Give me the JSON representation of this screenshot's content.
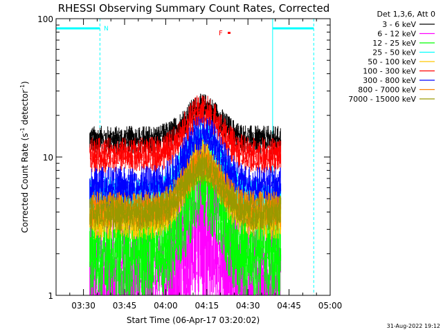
{
  "chart_data": {
    "type": "line",
    "title": "RHESSI Observing Summary Count Rates, Corrected",
    "xlabel": "Start Time (06-Apr-17 03:20:02)",
    "ylabel_main": "Corrected Count Rate (s",
    "ylabel_sup1": "-1",
    "ylabel_mid": " detector",
    "ylabel_sup2": "-1",
    "ylabel_end": ")",
    "yscale": "log",
    "ylim": [
      1,
      100
    ],
    "xlim": [
      "03:20",
      "05:00"
    ],
    "x_ticks": [
      "03:30",
      "03:45",
      "04:00",
      "04:15",
      "04:30",
      "04:45",
      "05:00"
    ],
    "y_ticks": [
      "1",
      "10",
      "100"
    ],
    "legend_title": "Det 1,3,6, Att 0",
    "legend_placement": "right",
    "timestamp": "31-Aug-2022 19:12",
    "annotations": {
      "n_marker": "N",
      "f_marker": "F",
      "night_intervals": [
        [
          "03:20",
          "03:36"
        ],
        [
          "04:39",
          "04:54"
        ]
      ],
      "data_window": [
        "03:32",
        "04:42"
      ],
      "flare_peak": "04:13"
    },
    "series": [
      {
        "name": "3 - 6 keV",
        "color": "#000000",
        "base": 14,
        "peak": 24,
        "noise": 0.08
      },
      {
        "name": "6 - 12 keV",
        "color": "#ff00ff",
        "base": 1.5,
        "peak": 3.6,
        "noise": 0.45
      },
      {
        "name": "12 - 25 keV",
        "color": "#00ff00",
        "base": 2.4,
        "peak": 8.5,
        "noise": 0.28
      },
      {
        "name": "25 - 50 keV",
        "color": "#00ffff",
        "base": 5.5,
        "peak": 15,
        "noise": 0.12
      },
      {
        "name": "50 - 100 keV",
        "color": "#ffc800",
        "base": 3.9,
        "peak": 10.5,
        "noise": 0.12
      },
      {
        "name": "100 - 300 keV",
        "color": "#ff0000",
        "base": 11,
        "peak": 23,
        "noise": 0.1
      },
      {
        "name": "300 - 800 keV",
        "color": "#0000ff",
        "base": 6.5,
        "peak": 16,
        "noise": 0.12
      },
      {
        "name": "800 - 7000 keV",
        "color": "#ff7f00",
        "base": 4.5,
        "peak": 10,
        "noise": 0.1
      },
      {
        "name": "7000 - 15000 keV",
        "color": "#999900",
        "base": 4.2,
        "peak": 9,
        "noise": 0.1
      }
    ]
  }
}
